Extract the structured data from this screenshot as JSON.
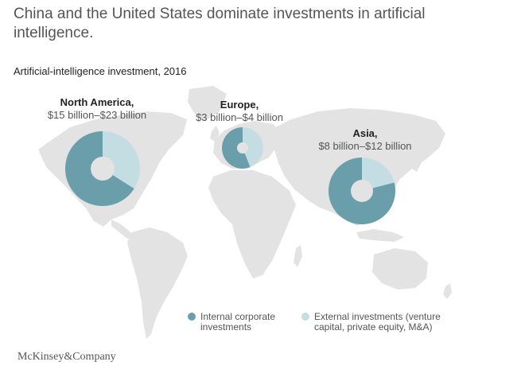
{
  "title": "China and the United States dominate investments in artificial intelligence.",
  "subtitle": "Artificial-intelligence investment, 2016",
  "logo": "McKinsey&Company",
  "colors": {
    "internal": "#6a9eaa",
    "external": "#c4dde2",
    "map": "#e3e3e3"
  },
  "legend": {
    "internal_label": "Internal corporate investments",
    "external_label": "External investments (venture capital, private equity, M&A)"
  },
  "chart_data": {
    "type": "pie",
    "title": "Artificial-intelligence investment, 2016",
    "series": [
      {
        "name": "Internal corporate investments"
      },
      {
        "name": "External investments (venture capital, private equity, M&A)"
      }
    ],
    "regions": [
      {
        "name": "North America,",
        "range": "$15 billion–$23 billion",
        "internal_share": 0.66,
        "external_share": 0.34
      },
      {
        "name": "Europe,",
        "range": "$3 billion–$4 billion",
        "internal_share": 0.56,
        "external_share": 0.44
      },
      {
        "name": "Asia,",
        "range": "$8 billion–$12 billion",
        "internal_share": 0.79,
        "external_share": 0.21
      }
    ]
  }
}
